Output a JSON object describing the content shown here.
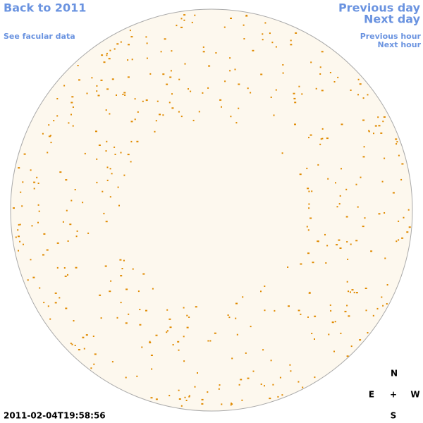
{
  "header": {
    "back_link": "Back to 2011",
    "facular_link": "See facular data",
    "previous_day": "Previous day",
    "next_day": "Next day",
    "previous_hour": "Previous hour",
    "next_hour": "Next hour"
  },
  "timestamp": "2011-02-04T19:58:56",
  "compass": {
    "north": "N",
    "east": "E",
    "center": "+",
    "west": "W",
    "south": "S"
  }
}
